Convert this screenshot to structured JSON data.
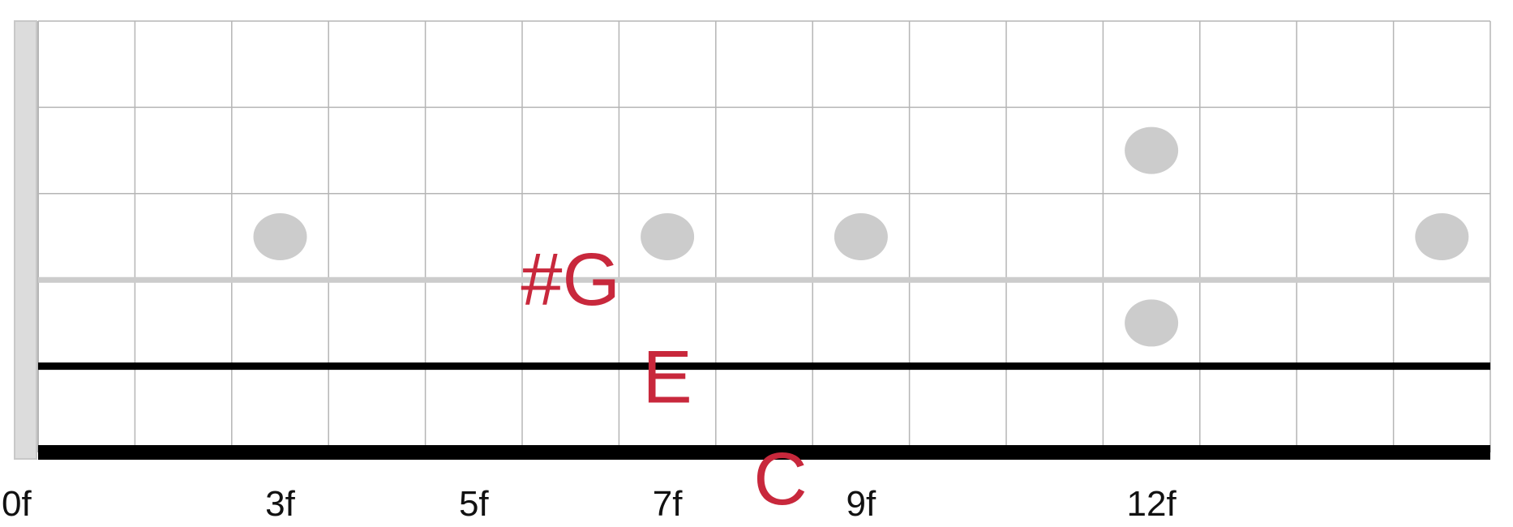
{
  "fretboard": {
    "fret_count": 15,
    "string_count": 6,
    "colors": {
      "grid": "#b5b5b5",
      "light_string": "#cccccc",
      "dark_string": "#000000",
      "inlay": "#cccccc",
      "nut": "#dcdcdc",
      "note": "#c8283c",
      "label": "#111111"
    },
    "fret_labels": [
      {
        "fret": 0,
        "text": "0f"
      },
      {
        "fret": 3,
        "text": "3f"
      },
      {
        "fret": 5,
        "text": "5f"
      },
      {
        "fret": 7,
        "text": "7f"
      },
      {
        "fret": 9,
        "text": "9f"
      },
      {
        "fret": 12,
        "text": "12f"
      }
    ],
    "highlighted_strings": [
      {
        "string": 3,
        "color": "#cccccc"
      },
      {
        "string": 2,
        "color": "#000000"
      },
      {
        "string": 1,
        "color": "#000000"
      }
    ],
    "inlays": [
      {
        "fret": 3,
        "space": 3
      },
      {
        "fret": 7,
        "space": 3
      },
      {
        "fret": 9,
        "space": 3
      },
      {
        "fret": 12,
        "space": 2
      },
      {
        "fret": 12,
        "space": 4
      },
      {
        "fret": 15,
        "space": 3
      }
    ],
    "notes": [
      {
        "text": "#G",
        "fret": 6,
        "string": 3
      },
      {
        "text": "E",
        "fret": 7,
        "string": 2
      },
      {
        "text": "C",
        "fret": 8,
        "string": 1
      }
    ]
  }
}
